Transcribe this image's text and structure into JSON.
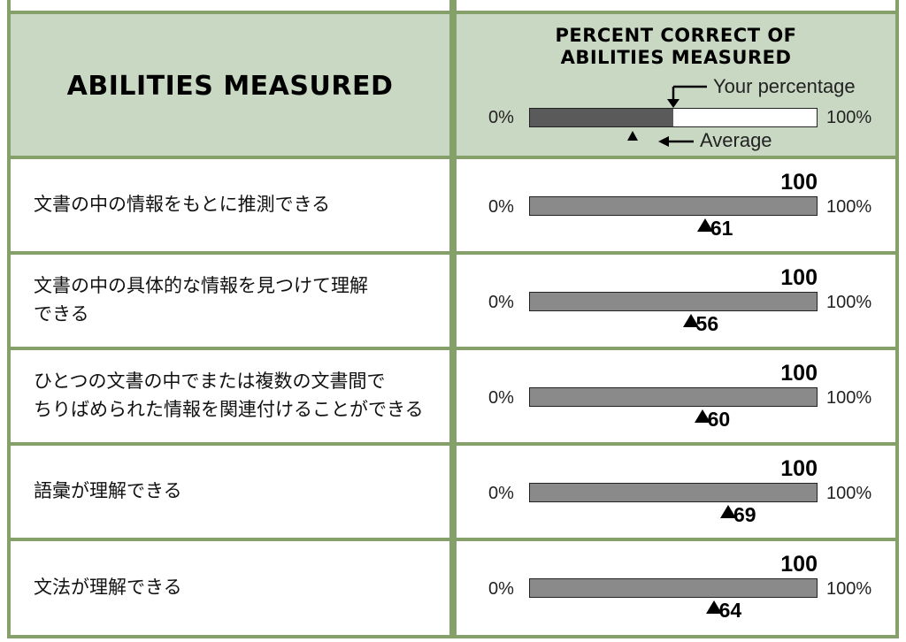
{
  "header": {
    "abilities_title": "ABILITIES MEASURED",
    "percent_title_line1": "PERCENT CORRECT OF",
    "percent_title_line2": "ABILITIES MEASURED",
    "legend": {
      "your_percentage_label": "Your percentage",
      "average_label": "Average",
      "min_label": "0%",
      "max_label": "100%"
    }
  },
  "colors": {
    "border": "#86a06a",
    "header_background": "#c9d8c3",
    "bar_fill": "#8a8a8a",
    "legend_fill": "#5a5a5a"
  },
  "chart_data": {
    "type": "bar",
    "xlim": [
      0,
      100
    ],
    "min_label": "0%",
    "max_label": "100%",
    "legend_example": {
      "your_percentage": 50,
      "average": 36
    },
    "categories": [
      "文書の中の情報をもとに推測できる",
      "文書の中の具体的な情報を見つけて理解できる",
      "ひとつの文書の中でまたは複数の文書間でちりばめられた情報を関連付けることができる",
      "語彙が理解できる",
      "文法が理解できる"
    ],
    "category_lines": [
      [
        "文書の中の情報をもとに推測できる"
      ],
      [
        "文書の中の具体的な情報を見つけて理解",
        "できる"
      ],
      [
        "ひとつの文書の中でまたは複数の文書間で",
        "ちりばめられた情報を関連付けることができる"
      ],
      [
        "語彙が理解できる"
      ],
      [
        "文法が理解できる"
      ]
    ],
    "series": [
      {
        "name": "Your percentage",
        "values": [
          100,
          100,
          100,
          100,
          100
        ]
      },
      {
        "name": "Average",
        "values": [
          61,
          56,
          60,
          69,
          64
        ]
      }
    ]
  }
}
